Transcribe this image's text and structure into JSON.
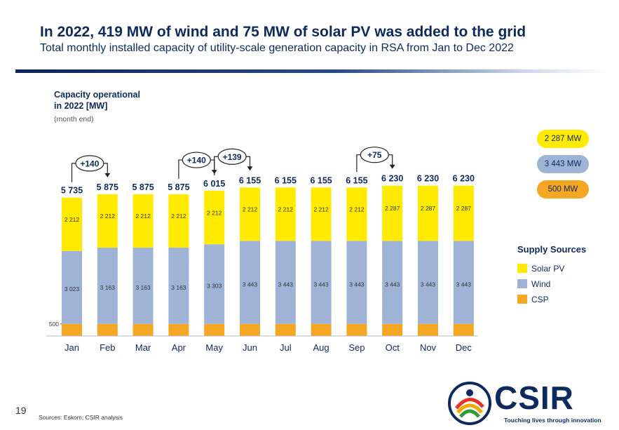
{
  "header": {
    "title": "In 2022, 419 MW of wind and 75 MW of solar PV was added to the grid",
    "subtitle": "Total monthly installed capacity of utility-scale generation capacity in RSA from Jan to Dec 2022"
  },
  "axis_note": {
    "line1": "Capacity operational",
    "line2": "in 2022 [MW]",
    "line3": "(month end)"
  },
  "chart_data": {
    "type": "bar",
    "stacked": true,
    "categories": [
      "Jan",
      "Feb",
      "Mar",
      "Apr",
      "May",
      "Jun",
      "Jul",
      "Aug",
      "Sep",
      "Oct",
      "Nov",
      "Dec"
    ],
    "series": [
      {
        "name": "CSP",
        "color": "#f5a623",
        "values": [
          500,
          500,
          500,
          500,
          500,
          500,
          500,
          500,
          500,
          500,
          500,
          500
        ],
        "labels": [
          "500",
          "",
          "",
          "",
          "",
          "",
          "",
          "",
          "",
          "",
          "",
          ""
        ]
      },
      {
        "name": "Wind",
        "color": "#9fb3d6",
        "values": [
          3023,
          3163,
          3163,
          3163,
          3303,
          3443,
          3443,
          3443,
          3443,
          3443,
          3443,
          3443
        ],
        "labels": [
          "3 023",
          "3 163",
          "3 163",
          "3 163",
          "3 303",
          "3 443",
          "3 443",
          "3 443",
          "3 443",
          "3 443",
          "3 443",
          "3 443"
        ]
      },
      {
        "name": "Solar PV",
        "color": "#ffea00",
        "values": [
          2212,
          2212,
          2212,
          2212,
          2212,
          2212,
          2212,
          2212,
          2212,
          2287,
          2287,
          2287
        ],
        "labels": [
          "2 212",
          "2 212",
          "2 212",
          "2 212",
          "2 212",
          "2 212",
          "2 212",
          "2 212",
          "2 212",
          "2 287",
          "2 287",
          "2 287"
        ]
      }
    ],
    "totals": [
      "5 735",
      "5 875",
      "5 875",
      "5 875",
      "6 015",
      "6 155",
      "6 155",
      "6 155",
      "6 155",
      "6 230",
      "6 230",
      "6 230"
    ],
    "annotations": [
      {
        "label": "+140",
        "from": "Jan",
        "to": "Feb"
      },
      {
        "label": "+140",
        "from": "Apr",
        "to": "May"
      },
      {
        "label": "+139",
        "from": "May",
        "to": "Jun"
      },
      {
        "label": "+75",
        "from": "Sep",
        "to": "Oct"
      }
    ],
    "legend_title": "Supply Sources",
    "legend": [
      {
        "name": "Solar PV",
        "color": "#ffea00"
      },
      {
        "name": "Wind",
        "color": "#9fb3d6"
      },
      {
        "name": "CSP",
        "color": "#f5a623"
      }
    ],
    "legend_position": "right",
    "grid": false
  },
  "pills": [
    {
      "label": "2 287 MW",
      "color": "#ffea00"
    },
    {
      "label": "3 443 MW",
      "color": "#9fb3d6"
    },
    {
      "label": "500 MW",
      "color": "#f5a623"
    }
  ],
  "footer": {
    "page_number": "19",
    "source": "Sources: Eskom; CSIR analysis"
  },
  "logo": {
    "word": "CSIR",
    "tagline": "Touching lives through innovation"
  }
}
